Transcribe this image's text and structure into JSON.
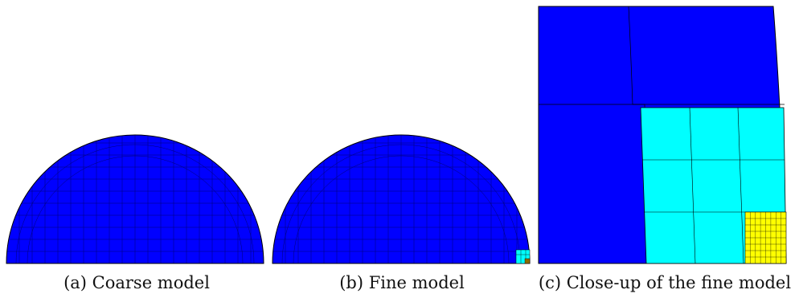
{
  "panels": [
    {
      "id": "a",
      "caption": "(a) Coarse model"
    },
    {
      "id": "b",
      "caption": "(b) Fine model"
    },
    {
      "id": "c",
      "caption": "(c) Close-up of the fine model"
    }
  ],
  "colors": {
    "coarse_mesh": "#0000ff",
    "refined_level_1": "#00ffff",
    "refined_level_2": "#ffff00",
    "mesh_lines": "#000000"
  }
}
